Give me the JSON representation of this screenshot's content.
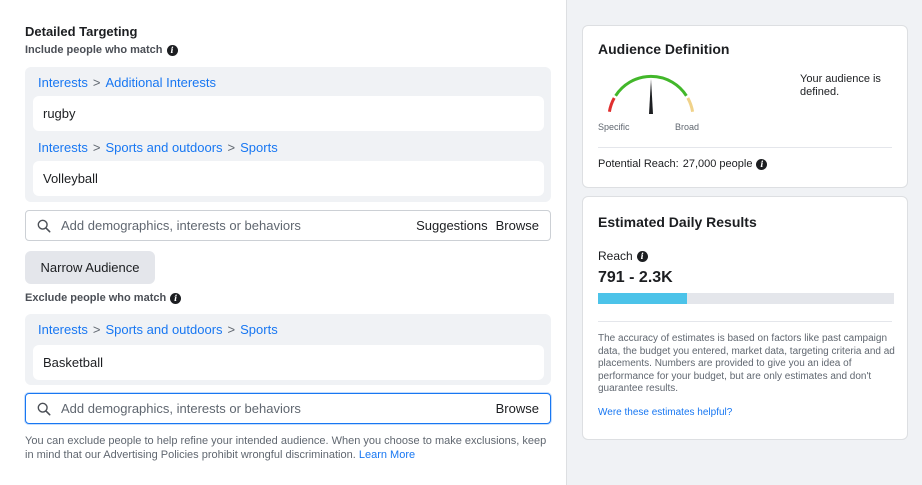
{
  "detailed_targeting": {
    "title": "Detailed Targeting",
    "include_label": "Include people who match",
    "include_groups": [
      {
        "path": [
          "Interests",
          "Additional Interests"
        ],
        "item": "rugby"
      },
      {
        "path": [
          "Interests",
          "Sports and outdoors",
          "Sports"
        ],
        "item": "Volleyball"
      }
    ],
    "search_placeholder": "Add demographics, interests or behaviors",
    "suggestions_label": "Suggestions",
    "browse_label": "Browse",
    "narrow_button": "Narrow Audience",
    "exclude_label": "Exclude people who match",
    "exclude_groups": [
      {
        "path": [
          "Interests",
          "Sports and outdoors",
          "Sports"
        ],
        "item": "Basketball"
      }
    ],
    "footer_text": "You can exclude people to help refine your intended audience. When you choose to make exclusions, keep in mind that our Advertising Policies prohibit wrongful discrimination.",
    "learn_more": "Learn More",
    "separator": ">"
  },
  "audience_definition": {
    "title": "Audience Definition",
    "status": "Your audience is defined.",
    "specific_label": "Specific",
    "broad_label": "Broad",
    "gauge_level": 0.5,
    "potential_reach_label": "Potential Reach:",
    "potential_reach_value": "27,000 people"
  },
  "daily_results": {
    "title": "Estimated Daily Results",
    "reach_label": "Reach",
    "reach_value": "791 - 2.3K",
    "reach_bar_fraction": 0.3,
    "disclaimer": "The accuracy of estimates is based on factors like past campaign data, the budget you entered, market data, targeting criteria and ad placements. Numbers are provided to give you an idea of performance for your budget, but are only estimates and don't guarantee results.",
    "feedback_link": "Were these estimates helpful?"
  },
  "colors": {
    "link": "#1877f2",
    "bar": "#4cc3e9",
    "gauge_red": "#e02f2f",
    "gauge_green": "#42b72a",
    "gauge_yellow": "#f0d28a"
  }
}
